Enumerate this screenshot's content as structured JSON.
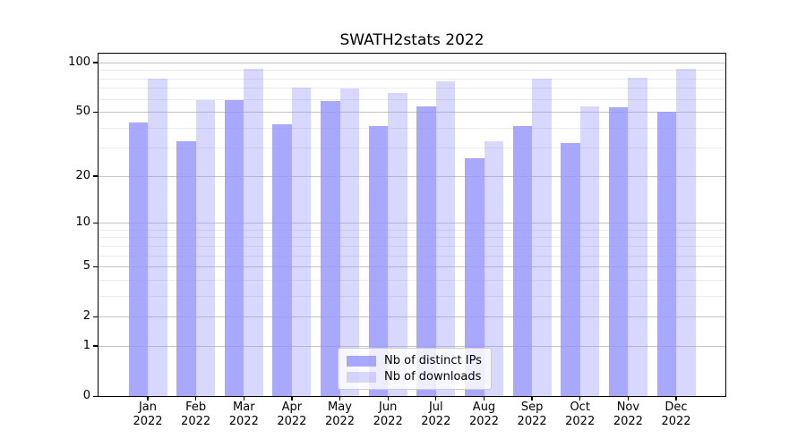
{
  "chart_data": {
    "type": "bar",
    "title": "SWATH2stats 2022",
    "categories": [
      "Jan",
      "Feb",
      "Mar",
      "Apr",
      "May",
      "Jun",
      "Jul",
      "Aug",
      "Sep",
      "Oct",
      "Nov",
      "Dec"
    ],
    "year_label": "2022",
    "series": [
      {
        "name": "Nb of distinct IPs",
        "color": "#9999ff",
        "alpha": 0.85,
        "values": [
          43,
          33,
          59,
          42,
          58,
          41,
          54,
          26,
          41,
          32,
          53,
          50
        ]
      },
      {
        "name": "Nb of downloads",
        "color": "#9999ff",
        "alpha": 0.38,
        "values": [
          80,
          59,
          91,
          70,
          69,
          65,
          77,
          33,
          80,
          54,
          81,
          92
        ]
      }
    ],
    "xlabel": "",
    "ylabel": "",
    "yscale": "log1p",
    "ylim": [
      0,
      113
    ],
    "yticks": [
      0,
      1,
      2,
      5,
      10,
      20,
      50,
      100
    ],
    "minor_gridlines": [
      3,
      4,
      6,
      7,
      8,
      9,
      30,
      40,
      60,
      70,
      80,
      90
    ],
    "grid": true,
    "legend_position": "lower center",
    "colors": {
      "major_grid": "#c4c4c4",
      "minor_grid": "#ebebeb",
      "spine": "#000000",
      "text": "#000000",
      "background": "#ffffff"
    }
  }
}
